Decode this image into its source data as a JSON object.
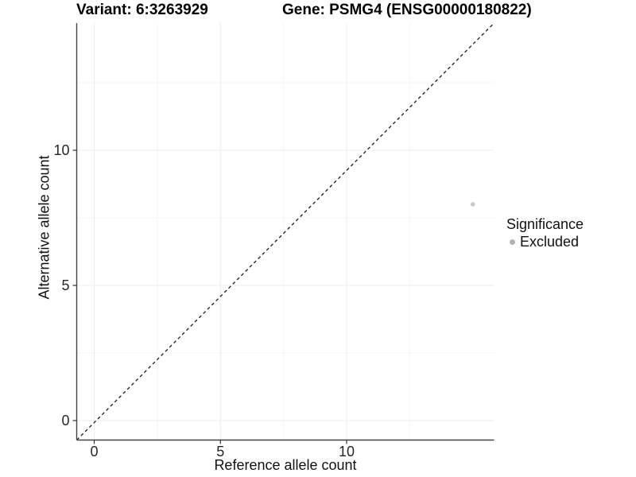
{
  "header": {
    "variant_title": "Variant: 6:3263929",
    "gene_title": "Gene: PSMG4 (ENSG00000180822)"
  },
  "legend": {
    "title": "Significance",
    "items": [
      {
        "label": "Excluded",
        "marker": "circle-icon",
        "color": "#b3b3b3"
      }
    ]
  },
  "chart_data": {
    "type": "scatter",
    "title": "Variant: 6:3263929 — Gene: PSMG4 (ENSG00000180822)",
    "xlabel": "Reference allele count",
    "ylabel": "Alternative allele count",
    "x_ticks": [
      0,
      5,
      10
    ],
    "y_ticks": [
      0,
      5,
      10
    ],
    "minor_x": [
      2.5,
      7.5,
      12.5
    ],
    "minor_y": [
      2.5,
      7.5,
      12.5
    ],
    "xlim": [
      -0.7,
      15.85
    ],
    "ylim": [
      -0.75,
      14.6
    ],
    "grid": "major+minor",
    "legend_position": "right",
    "series": [
      {
        "name": "Excluded",
        "color": "#c9c9c9",
        "points": [
          {
            "x": 15,
            "y": 8
          }
        ]
      }
    ],
    "reference_line": {
      "type": "identity y=x",
      "style": "dashed",
      "color": "#1a1a1a"
    }
  },
  "colors": {
    "background": "#ffffff",
    "axis_line": "#444444",
    "tick_mark": "#333333",
    "tick_label": "#262626",
    "grid_major": "#ececec",
    "grid_minor": "#f5f5f5",
    "point": "#c9c9c9",
    "legend_marker": "#b3b3b3"
  }
}
